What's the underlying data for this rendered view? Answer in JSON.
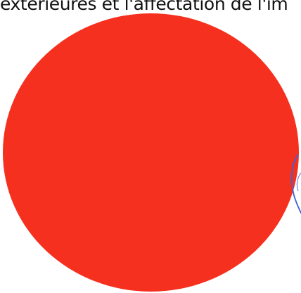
{
  "document": {
    "top_text": "extérieures et l'affectation de l'im",
    "stamp_color": "#3f63d8",
    "circle_color": "#f5301f"
  }
}
